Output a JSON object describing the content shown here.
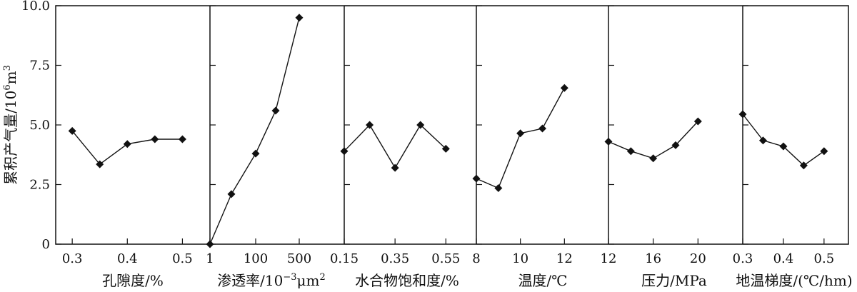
{
  "y_axis": {
    "label_main": "累积产气量/10",
    "label_sup1": "6",
    "label_mid": "m",
    "label_sup2": "3",
    "ticks": [
      "0",
      "2.5",
      "5.0",
      "7.5",
      "10.0"
    ],
    "ylim": [
      0,
      10
    ]
  },
  "chart_data": [
    {
      "type": "line",
      "xlabel": "孔隙度/%",
      "x_ticks": [
        "0.3",
        "0.4",
        "0.5"
      ],
      "x_tick_values": [
        0.3,
        0.4,
        0.5
      ],
      "xlim": [
        0.27,
        0.55
      ],
      "x": [
        0.3,
        0.35,
        0.4,
        0.45,
        0.5
      ],
      "y": [
        4.75,
        3.35,
        4.2,
        4.4,
        4.4
      ],
      "marker": "diamond",
      "color": "#111111"
    },
    {
      "type": "line",
      "xlabel": "渗透率/10",
      "xlabel_sup": "−3",
      "xlabel_unit": "μm",
      "xlabel_sup2": "2",
      "x_ticks": [
        "1",
        "100",
        "500"
      ],
      "x_tick_values": [
        1,
        100,
        500
      ],
      "xlim": [
        1,
        800
      ],
      "x": [
        1,
        10,
        100,
        250,
        500
      ],
      "y": [
        0.0,
        2.1,
        3.8,
        5.6,
        9.5
      ],
      "x_scale": "custom",
      "marker": "diamond",
      "color": "#111111"
    },
    {
      "type": "line",
      "xlabel": "水合物饱和度/%",
      "x_ticks": [
        "0.15",
        "0.35",
        "0.55"
      ],
      "x_tick_values": [
        0.15,
        0.35,
        0.55
      ],
      "xlim": [
        0.15,
        0.67
      ],
      "x": [
        0.15,
        0.25,
        0.35,
        0.45,
        0.55
      ],
      "y": [
        3.9,
        5.0,
        3.2,
        5.0,
        4.0
      ],
      "marker": "diamond",
      "color": "#111111"
    },
    {
      "type": "line",
      "xlabel": "温度/℃",
      "x_ticks": [
        "8",
        "10",
        "12"
      ],
      "x_tick_values": [
        8,
        10,
        12
      ],
      "xlim": [
        8,
        14
      ],
      "x": [
        8,
        9,
        10,
        11,
        12
      ],
      "y": [
        2.75,
        2.35,
        4.65,
        4.85,
        6.55
      ],
      "marker": "diamond",
      "color": "#111111"
    },
    {
      "type": "line",
      "xlabel": "压力/MPa",
      "x_ticks": [
        "12",
        "16",
        "20"
      ],
      "x_tick_values": [
        12,
        16,
        20
      ],
      "xlim": [
        12,
        24
      ],
      "x": [
        12,
        14,
        16,
        18,
        20
      ],
      "y": [
        4.3,
        3.9,
        3.6,
        4.15,
        5.15
      ],
      "marker": "diamond",
      "color": "#111111"
    },
    {
      "type": "line",
      "xlabel": "地温梯度/(℃/hm)",
      "x_ticks": [
        "0.3",
        "0.4",
        "0.5"
      ],
      "x_tick_values": [
        0.3,
        0.4,
        0.5
      ],
      "xlim": [
        0.3,
        0.56
      ],
      "x": [
        0.3,
        0.35,
        0.4,
        0.45,
        0.5
      ],
      "y": [
        5.45,
        4.35,
        4.1,
        3.3,
        3.9
      ],
      "marker": "diamond",
      "color": "#111111"
    }
  ]
}
